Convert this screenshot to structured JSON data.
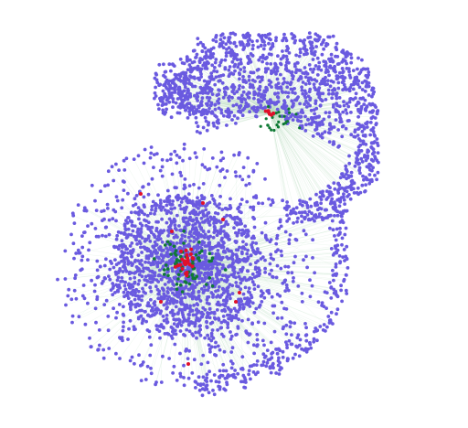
{
  "figure": {
    "type": "network-graph",
    "background": "#ffffff",
    "colors": {
      "node": "#6a5ae0",
      "node_stroke": "#4c3fc4",
      "edge": "#b8dcc0",
      "hub_red": "#e0102a",
      "hub_green": "#0f7a35"
    },
    "components": [
      {
        "name": "upper-right-component",
        "shape": "crescent",
        "node_count_estimate": 1400
      },
      {
        "name": "lower-left-component",
        "shape": "radial-disc",
        "node_count_estimate": 2600
      }
    ]
  }
}
